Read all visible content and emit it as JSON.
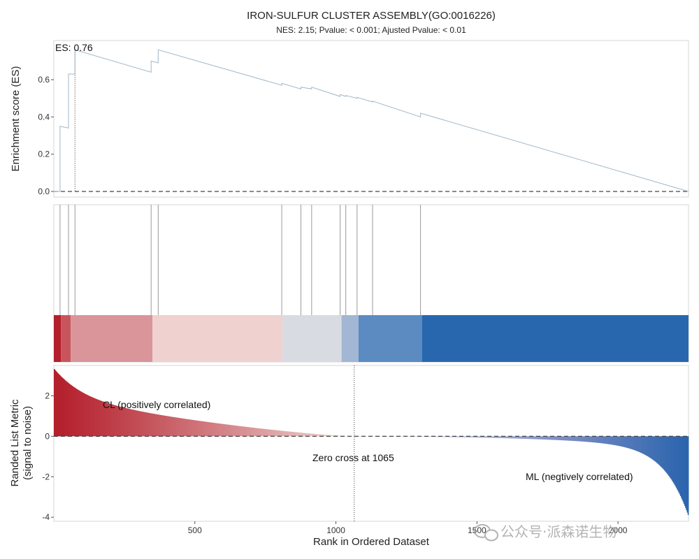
{
  "chart_data": {
    "type": "line",
    "title": "IRON-SULFUR CLUSTER ASSEMBLY(GO:0016226)",
    "subtitle": "NES: 2.15;  Pvalue: < 0.001;  Ajusted Pvalue: < 0.01",
    "n_genes": 2250,
    "xlabel": "Rank in Ordered Dataset",
    "xlim": [
      0,
      2250
    ],
    "x_ticks": [
      500,
      1000,
      1500,
      2000
    ],
    "x_tick_labels": [
      "500",
      "1000",
      "1500",
      "2000"
    ],
    "panels": {
      "es_curve": {
        "ylabel": "Enrichment score (ES)",
        "ylim": [
          -0.03,
          0.81
        ],
        "y_ticks": [
          0.0,
          0.2,
          0.4,
          0.6
        ],
        "y_tick_labels": [
          "0.0",
          "0.2",
          "0.4",
          "0.6"
        ],
        "es_label": "ES: 0.76",
        "es_max": 0.76,
        "es_peak_rank": 75,
        "points": [
          {
            "x": 0,
            "y": 0.0
          },
          {
            "x": 22,
            "y": 0.0
          },
          {
            "x": 22,
            "y": 0.35
          },
          {
            "x": 52,
            "y": 0.34
          },
          {
            "x": 52,
            "y": 0.63
          },
          {
            "x": 75,
            "y": 0.63
          },
          {
            "x": 75,
            "y": 0.76
          },
          {
            "x": 345,
            "y": 0.64
          },
          {
            "x": 345,
            "y": 0.7
          },
          {
            "x": 370,
            "y": 0.69
          },
          {
            "x": 370,
            "y": 0.76
          },
          {
            "x": 808,
            "y": 0.57
          },
          {
            "x": 808,
            "y": 0.58
          },
          {
            "x": 876,
            "y": 0.55
          },
          {
            "x": 876,
            "y": 0.56
          },
          {
            "x": 914,
            "y": 0.55
          },
          {
            "x": 914,
            "y": 0.56
          },
          {
            "x": 1015,
            "y": 0.51
          },
          {
            "x": 1015,
            "y": 0.52
          },
          {
            "x": 1035,
            "y": 0.51
          },
          {
            "x": 1035,
            "y": 0.515
          },
          {
            "x": 1075,
            "y": 0.5
          },
          {
            "x": 1075,
            "y": 0.505
          },
          {
            "x": 1130,
            "y": 0.48
          },
          {
            "x": 1130,
            "y": 0.485
          },
          {
            "x": 1300,
            "y": 0.4
          },
          {
            "x": 1300,
            "y": 0.42
          },
          {
            "x": 2250,
            "y": 0.0
          }
        ],
        "line_color": "#9fb7c8"
      },
      "hits": {
        "gene_ranks": [
          22,
          52,
          75,
          345,
          370,
          808,
          876,
          914,
          1015,
          1035,
          1075,
          1130,
          1300
        ],
        "hit_color": "#9a9a9a",
        "color_bands": [
          {
            "from": 0,
            "to": 25,
            "color": "#b41f2c"
          },
          {
            "from": 25,
            "to": 60,
            "color": "#c9555c"
          },
          {
            "from": 60,
            "to": 350,
            "color": "#d9959a"
          },
          {
            "from": 350,
            "to": 810,
            "color": "#efd1d0"
          },
          {
            "from": 810,
            "to": 1020,
            "color": "#d9dbe2"
          },
          {
            "from": 1020,
            "to": 1080,
            "color": "#a3b6d3"
          },
          {
            "from": 1080,
            "to": 1305,
            "color": "#5b8bc0"
          },
          {
            "from": 1305,
            "to": 2250,
            "color": "#2867ad"
          }
        ]
      },
      "ranked_metric": {
        "ylabel_line1": "Randed List Metric",
        "ylabel_line2": "(signal to noise)",
        "ylim": [
          -4.2,
          3.5
        ],
        "y_ticks": [
          2,
          0,
          -2,
          -4
        ],
        "y_tick_labels": [
          "2",
          "0",
          "-2",
          "-4"
        ],
        "zero_cross_rank": 1065,
        "zero_cross_label": "Zero cross at 1065",
        "positive_label": "CL (positively correlated)",
        "negative_label": "ML (negtively correlated)",
        "metric_max": 3.35,
        "metric_min": -3.95,
        "pos_color_strong": "#b41f2c",
        "pos_color_weak": "#f0ddd9",
        "neg_color_weak": "#e6e6f0",
        "neg_color_mid": "#7f8fc6",
        "neg_color_strong": "#2a64ad"
      }
    }
  },
  "watermark": "公众号·派森诺生物"
}
